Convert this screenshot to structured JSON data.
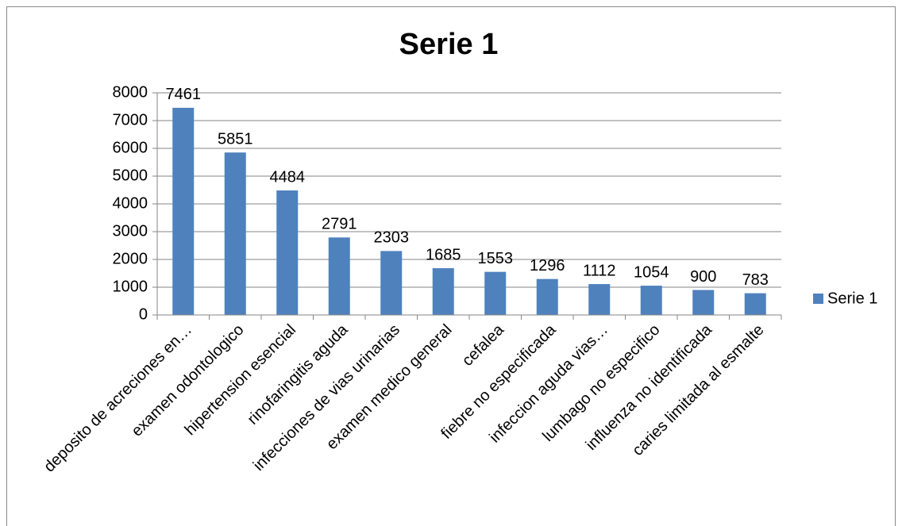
{
  "chart_data": {
    "type": "bar",
    "title": "Serie 1",
    "categories": [
      "deposito de acreciones en…",
      "examen odontologico",
      "hipertension esencial",
      "rinofaringitis aguda",
      "infecciones de vias urinarias",
      "examen medico general",
      "cefalea",
      "fiebre no especificada",
      "infeccion aguda vias…",
      "lumbago no especifico",
      "influenza no identificada",
      "caries limitada al esmalte"
    ],
    "series": [
      {
        "name": "Serie 1",
        "color": "#4f81bd",
        "values": [
          7461,
          5851,
          4484,
          2791,
          2303,
          1685,
          1553,
          1296,
          1112,
          1054,
          900,
          783
        ]
      }
    ],
    "ylim": [
      0,
      8000
    ],
    "yticks": [
      0,
      1000,
      2000,
      3000,
      4000,
      5000,
      6000,
      7000,
      8000
    ],
    "grid": true,
    "legend": "right"
  }
}
